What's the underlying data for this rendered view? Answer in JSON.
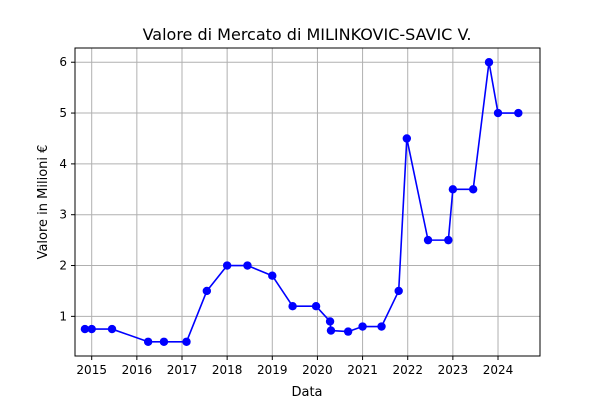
{
  "chart_data": {
    "type": "line",
    "title": "Valore di Mercato di MILINKOVIC-SAVIC V.",
    "xlabel": "Data",
    "ylabel": "Valore in Milioni €",
    "x_ticks": [
      "2015",
      "2016",
      "2017",
      "2018",
      "2019",
      "2020",
      "2021",
      "2022",
      "2023",
      "2024"
    ],
    "y_ticks": [
      "1",
      "2",
      "3",
      "4",
      "5",
      "6"
    ],
    "xlim": [
      2014.63,
      2024.93
    ],
    "ylim": [
      0.22,
      6.28
    ],
    "grid": true,
    "line_color": "#0000ff",
    "series": [
      {
        "marker": "circle",
        "points": [
          {
            "x": 2014.85,
            "y": 0.75
          },
          {
            "x": 2015.0,
            "y": 0.75
          },
          {
            "x": 2015.45,
            "y": 0.75
          },
          {
            "x": 2016.25,
            "y": 0.5
          },
          {
            "x": 2016.6,
            "y": 0.5
          },
          {
            "x": 2017.1,
            "y": 0.5
          },
          {
            "x": 2017.55,
            "y": 1.5
          },
          {
            "x": 2018.0,
            "y": 2.0
          },
          {
            "x": 2018.45,
            "y": 2.0
          },
          {
            "x": 2019.0,
            "y": 1.8
          },
          {
            "x": 2019.45,
            "y": 1.2
          },
          {
            "x": 2019.97,
            "y": 1.2
          },
          {
            "x": 2020.28,
            "y": 0.9
          },
          {
            "x": 2020.3,
            "y": 0.72
          },
          {
            "x": 2020.68,
            "y": 0.7
          },
          {
            "x": 2021.0,
            "y": 0.8
          },
          {
            "x": 2021.42,
            "y": 0.8
          },
          {
            "x": 2021.8,
            "y": 1.5
          },
          {
            "x": 2021.98,
            "y": 4.5
          },
          {
            "x": 2022.45,
            "y": 2.5
          },
          {
            "x": 2022.9,
            "y": 2.5
          },
          {
            "x": 2023.0,
            "y": 3.5
          },
          {
            "x": 2023.45,
            "y": 3.5
          },
          {
            "x": 2023.8,
            "y": 6.0
          },
          {
            "x": 2024.0,
            "y": 5.0
          },
          {
            "x": 2024.45,
            "y": 5.0
          }
        ]
      }
    ]
  }
}
